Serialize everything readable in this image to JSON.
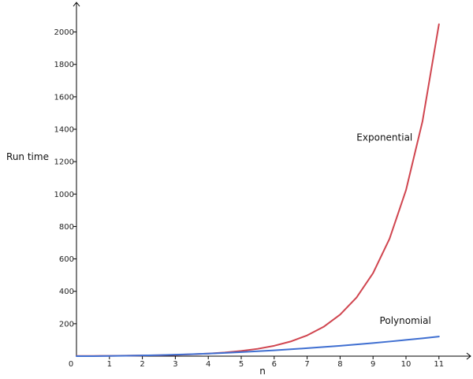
{
  "chart_data": {
    "type": "line",
    "title": "",
    "xlabel": "n",
    "ylabel": "Run time",
    "xlim": [
      0,
      12
    ],
    "ylim": [
      0,
      2150
    ],
    "x_ticks": [
      0,
      1,
      2,
      3,
      4,
      5,
      6,
      7,
      8,
      9,
      10,
      11
    ],
    "y_ticks": [
      200,
      400,
      600,
      800,
      1000,
      1200,
      1400,
      1600,
      1800,
      2000
    ],
    "grid": false,
    "legend": "none",
    "series": [
      {
        "name": "Exponential",
        "color": "#d0454f",
        "x": [
          0,
          0.5,
          1,
          1.5,
          2,
          2.5,
          3,
          3.5,
          4,
          4.5,
          5,
          5.5,
          6,
          6.5,
          7,
          7.5,
          8,
          8.5,
          9,
          9.5,
          10,
          10.5,
          11
        ],
        "y": [
          1,
          1.4,
          2,
          2.8,
          4,
          5.7,
          8,
          11.3,
          16,
          22.6,
          32,
          45.3,
          64,
          90.5,
          128,
          181,
          256,
          362,
          512,
          724,
          1024,
          1448,
          2048
        ]
      },
      {
        "name": "Polynomial",
        "color": "#3f6fd1",
        "x": [
          0,
          0.5,
          1,
          1.5,
          2,
          2.5,
          3,
          3.5,
          4,
          4.5,
          5,
          5.5,
          6,
          6.5,
          7,
          7.5,
          8,
          8.5,
          9,
          9.5,
          10,
          10.5,
          11
        ],
        "y": [
          0,
          0.25,
          1,
          2.25,
          4,
          6.25,
          9,
          12.25,
          16,
          20.25,
          25,
          30.25,
          36,
          42.25,
          49,
          56.25,
          64,
          72.25,
          81,
          90.25,
          100,
          110.25,
          121
        ]
      }
    ]
  }
}
